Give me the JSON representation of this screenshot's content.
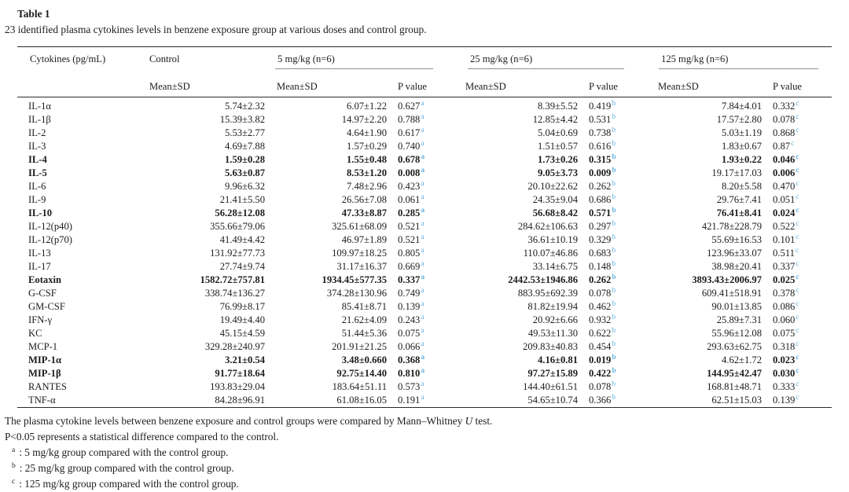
{
  "page": {
    "title": "Table 1",
    "caption": "23 identified plasma cytokines levels in benzene exposure group at various doses and control group."
  },
  "table": {
    "headers": {
      "cytokines": "Cytokines (pg/mL)",
      "control": "Control",
      "groups": [
        "5 mg/kg (n=6)",
        "25 mg/kg (n=6)",
        "125 mg/kg (n=6)"
      ],
      "mean_sd": "Mean±SD",
      "p_value": "P value"
    },
    "sup_markers": [
      "a",
      "b",
      "c"
    ],
    "accent_colors": {
      "superscript_link": "#64b2e2",
      "rule_dark": "#2a2a2a",
      "rule_gray": "#8f8f8f"
    },
    "rows": [
      {
        "name": "IL-1α",
        "bold": false,
        "control": "5.74±2.32",
        "m5": "6.07±1.22",
        "p5": "0.627",
        "m25": "8.39±5.52",
        "p25": "0.419",
        "m125": "7.84±4.01",
        "p125": "0.332"
      },
      {
        "name": "IL-1β",
        "bold": false,
        "control": "15.39±3.82",
        "m5": "14.97±2.20",
        "p5": "0.788",
        "m25": "12.85±4.42",
        "p25": "0.531",
        "m125": "17.57±2.80",
        "p125": "0.078"
      },
      {
        "name": "IL-2",
        "bold": false,
        "control": "5.53±2.77",
        "m5": "4.64±1.90",
        "p5": "0.617",
        "m25": "5.04±0.69",
        "p25": "0.738",
        "m125": "5.03±1.19",
        "p125": "0.868"
      },
      {
        "name": "IL-3",
        "bold": false,
        "control": "4.69±7.88",
        "m5": "1.57±0.29",
        "p5": "0.740",
        "m25": "1.51±0.57",
        "p25": "0.616",
        "m125": "1.83±0.67",
        "p125": "0.87"
      },
      {
        "name": "IL-4",
        "bold": true,
        "control": "1.59±0.28",
        "m5": "1.55±0.48",
        "p5": "0.678",
        "m25": "1.73±0.26",
        "p25": "0.315",
        "m125": "1.93±0.22",
        "p125": "0.046"
      },
      {
        "name": "IL-5",
        "bold": true,
        "control": "5.63±0.87",
        "m5": "8.53±1.20",
        "p5": "0.008",
        "m25": "9.05±3.73",
        "p25": "0.009",
        "m125": "19.17±17.03",
        "m125_bold": false,
        "p125": "0.006"
      },
      {
        "name": "IL-6",
        "bold": false,
        "control": "9.96±6.32",
        "m5": "7.48±2.96",
        "p5": "0.423",
        "m25": "20.10±22.62",
        "p25": "0.262",
        "m125": "8.20±5.58",
        "p125": "0.470"
      },
      {
        "name": "IL-9",
        "bold": false,
        "control": "21.41±5.50",
        "m5": "26.56±7.08",
        "p5": "0.061",
        "m25": "24.35±9.04",
        "p25": "0.686",
        "m125": "29.76±7.41",
        "p125": "0.051"
      },
      {
        "name": "IL-10",
        "bold": true,
        "control": "56.28±12.08",
        "m5": "47.33±8.87",
        "p5": "0.285",
        "m25": "56.68±8.42",
        "p25": "0.571",
        "m125": "76.41±8.41",
        "p125": "0.024"
      },
      {
        "name": "IL-12(p40)",
        "bold": false,
        "control": "355.66±79.06",
        "m5": "325.61±68.09",
        "p5": "0.521",
        "m25": "284.62±106.63",
        "p25": "0.297",
        "m125": "421.78±228.79",
        "p125": "0.522"
      },
      {
        "name": "IL-12(p70)",
        "bold": false,
        "control": "41.49±4.42",
        "m5": "46.97±1.89",
        "p5": "0.521",
        "m25": "36.61±10.19",
        "p25": "0.329",
        "m125": "55.69±16.53",
        "p125": "0.101"
      },
      {
        "name": "IL-13",
        "bold": false,
        "control": "131.92±77.73",
        "m5": "109.97±18.25",
        "p5": "0.805",
        "m25": "110.07±46.86",
        "p25": "0.683",
        "m125": "123.96±33.07",
        "p125": "0.511"
      },
      {
        "name": "IL-17",
        "bold": false,
        "control": "27.74±9.74",
        "m5": "31.17±16.37",
        "p5": "0.669",
        "m25": "33.14±6.75",
        "p25": "0.148",
        "m125": "38.98±20.41",
        "p125": "0.337"
      },
      {
        "name": "Eotaxin",
        "bold": true,
        "control": "1582.72±757.81",
        "m5": "1934.45±577.35",
        "p5": "0.337",
        "m25": "2442.53±1946.86",
        "p25": "0.262",
        "m125": "3893.43±2006.97",
        "p125": "0.025"
      },
      {
        "name": "G-CSF",
        "bold": false,
        "control": "338.74±136.27",
        "m5": "374.28±130.96",
        "p5": "0.749",
        "m25": "883.95±692.39",
        "p25": "0.078",
        "m125": "609.41±518.91",
        "p125": "0.378"
      },
      {
        "name": "GM-CSF",
        "bold": false,
        "control": "76.99±8.17",
        "m5": "85.41±8.71",
        "p5": "0.139",
        "m25": "81.82±19.94",
        "p25": "0.462",
        "m125": "90.01±13.85",
        "p125": "0.086"
      },
      {
        "name": "IFN-γ",
        "bold": false,
        "control": "19.49±4.40",
        "m5": "21.62±4.09",
        "p5": "0.243",
        "m25": "20.92±6.66",
        "p25": "0.932",
        "m125": "25.89±7.31",
        "p125": "0.060"
      },
      {
        "name": "KC",
        "bold": false,
        "control": "45.15±4.59",
        "m5": "51.44±5.36",
        "p5": "0.075",
        "m25": "49.53±11.30",
        "p25": "0.622",
        "m125": "55.96±12.08",
        "p125": "0.075"
      },
      {
        "name": "MCP-1",
        "bold": false,
        "control": "329.28±240.97",
        "m5": "201.91±21.25",
        "p5": "0.066",
        "m25": "209.83±40.83",
        "p25": "0.454",
        "m125": "293.63±62.75",
        "p125": "0.318"
      },
      {
        "name": "MIP-1α",
        "bold": true,
        "control": "3.21±0.54",
        "m5": "3.48±0.660",
        "p5": "0.368",
        "m25": "4.16±0.81",
        "p25": "0.019",
        "m125": "4.62±1.72",
        "m125_bold": false,
        "p125": "0.023"
      },
      {
        "name": "MIP-1β",
        "bold": true,
        "control": "91.77±18.64",
        "m5": "92.75±14.40",
        "p5": "0.810",
        "m25": "97.27±15.89",
        "p25": "0.422",
        "m125": "144.95±42.47",
        "p125": "0.030"
      },
      {
        "name": "RANTES",
        "bold": false,
        "control": "193.83±29.04",
        "m5": "183.64±51.11",
        "p5": "0.573",
        "m25": "144.40±61.51",
        "p25": "0.078",
        "m125": "168.81±48.71",
        "p125": "0.333"
      },
      {
        "name": "TNF-α",
        "bold": false,
        "control": "84.28±96.91",
        "m5": "61.08±16.05",
        "p5": "0.191",
        "m25": "54.65±10.74",
        "p25": "0.366",
        "m125": "62.51±15.03",
        "p125": "0.139"
      }
    ],
    "footnotes": {
      "line1_pre": "The plasma cytokine levels between benzene exposure and control groups were compared by Mann–Whitney ",
      "line1_italic": "U",
      "line1_post": " test.",
      "line2": "P<0.05 represents a statistical difference compared to the control.",
      "items": [
        {
          "marker": "a",
          "text": ": 5 mg/kg group compared with the control group."
        },
        {
          "marker": "b",
          "text": ": 25 mg/kg group compared with the control group."
        },
        {
          "marker": "c",
          "text": ": 125 mg/kg group compared with the control group."
        }
      ]
    }
  }
}
